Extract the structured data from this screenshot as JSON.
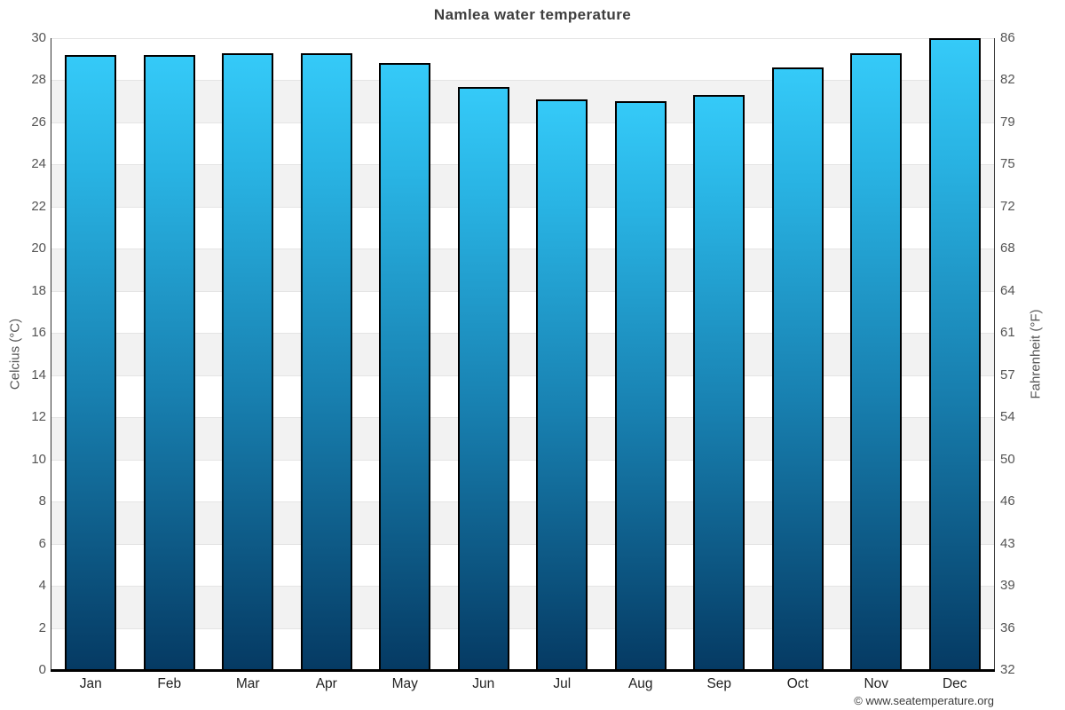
{
  "page": {
    "watermark": "© www.seatemperature.org"
  },
  "chart_data": {
    "type": "bar",
    "title": "Namlea water temperature",
    "categories": [
      "Jan",
      "Feb",
      "Mar",
      "Apr",
      "May",
      "Jun",
      "Jul",
      "Aug",
      "Sep",
      "Oct",
      "Nov",
      "Dec"
    ],
    "values": [
      29.2,
      29.2,
      29.3,
      29.3,
      28.8,
      27.7,
      27.1,
      27.0,
      27.3,
      28.6,
      29.3,
      30.0
    ],
    "ylabel_left": "Celcius (°C)",
    "ylabel_right": "Fahrenheit (°F)",
    "ylim": [
      0,
      30
    ],
    "ytick_step": 2,
    "yticks_celsius": [
      0,
      2,
      4,
      6,
      8,
      10,
      12,
      14,
      16,
      18,
      20,
      22,
      24,
      26,
      28,
      30
    ],
    "yticks_fahrenheit": [
      32,
      36,
      39,
      43,
      46,
      50,
      54,
      57,
      61,
      64,
      68,
      72,
      75,
      79,
      82,
      86
    ],
    "grid": "alternating-horizontal-bands",
    "legend": "none",
    "colors": {
      "bar_gradient_top": "#35caf8",
      "bar_gradient_mid": "#1880b0",
      "bar_gradient_bottom": "#053a63",
      "bar_border": "#000000",
      "band_light": "#ffffff",
      "band_gray": "#f2f2f2",
      "grid_line": "#e4e4e4",
      "axis_line": "#333333",
      "title_text": "#3e3e3e",
      "tick_text": "#555555",
      "month_text": "#222222",
      "watermark_text": "#3a3a3a"
    }
  }
}
